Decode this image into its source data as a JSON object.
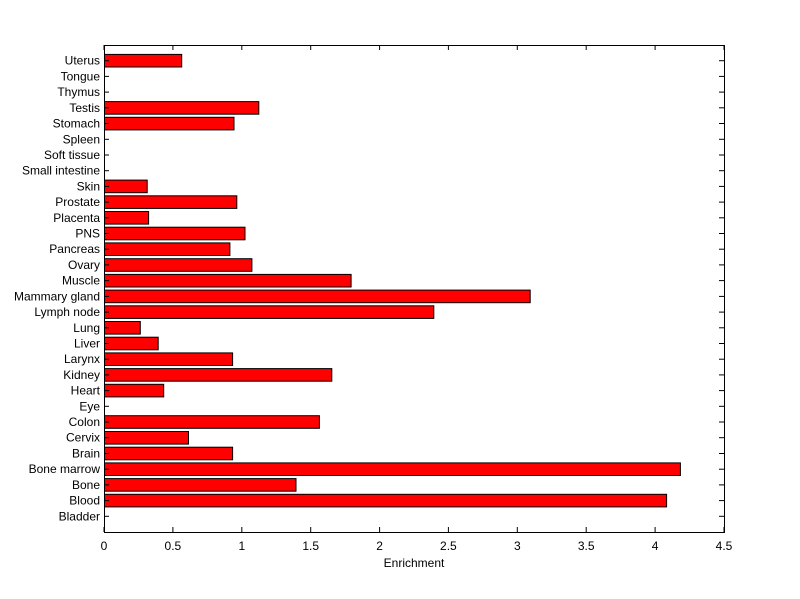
{
  "chart_data": {
    "type": "bar",
    "orientation": "horizontal",
    "title": "",
    "xlabel": "Enrichment",
    "ylabel": "",
    "xlim": [
      0,
      4.5
    ],
    "xticks": [
      "0",
      "0.5",
      "1",
      "1.5",
      "2",
      "2.5",
      "3",
      "3.5",
      "4",
      "4.5"
    ],
    "grid": false,
    "legend": "none",
    "bar_color": "#ff0000",
    "edge_color": "#000000",
    "categories": [
      "Bladder",
      "Blood",
      "Bone",
      "Bone marrow",
      "Brain",
      "Cervix",
      "Colon",
      "Eye",
      "Heart",
      "Kidney",
      "Larynx",
      "Liver",
      "Lung",
      "Lymph node",
      "Mammary gland",
      "Muscle",
      "Ovary",
      "Pancreas",
      "PNS",
      "Placenta",
      "Prostate",
      "Skin",
      "Small intestine",
      "Soft tissue",
      "Spleen",
      "Stomach",
      "Testis",
      "Thymus",
      "Tongue",
      "Uterus"
    ],
    "values": [
      0,
      4.08,
      1.39,
      4.18,
      0.93,
      0.61,
      1.56,
      0,
      0.43,
      1.65,
      0.93,
      0.39,
      0.26,
      2.39,
      3.09,
      1.79,
      1.07,
      0.91,
      1.02,
      0.32,
      0.96,
      0.31,
      0,
      0,
      0,
      0.94,
      1.12,
      0,
      0,
      0.56
    ]
  }
}
